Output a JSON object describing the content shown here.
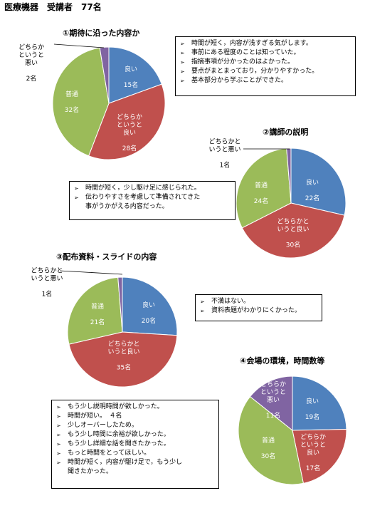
{
  "page_title": "医療機器　受講者　77名",
  "colors": {
    "good": "#4f81bd",
    "somewhat_good": "#c0504d",
    "normal": "#9bbb59",
    "somewhat_bad": "#8064a2"
  },
  "chart_data": [
    {
      "type": "pie",
      "title": "①期待に沿った内容か",
      "slices": [
        {
          "label": "良い",
          "count": "15名",
          "value": 15
        },
        {
          "label": "どちらか\nというと\n良い",
          "count": "28名",
          "value": 28
        },
        {
          "label": "普通",
          "count": "32名",
          "value": 32
        },
        {
          "label": "どちらか\nというと\n悪い",
          "count": "2名",
          "value": 2
        }
      ]
    },
    {
      "type": "pie",
      "title": "②講師の説明",
      "slices": [
        {
          "label": "良い",
          "count": "22名",
          "value": 22
        },
        {
          "label": "どちらかと\nいうと良い",
          "count": "30名",
          "value": 30
        },
        {
          "label": "普通",
          "count": "24名",
          "value": 24
        },
        {
          "label": "どちらかと\nいうと悪い",
          "count": "1名",
          "value": 1
        }
      ]
    },
    {
      "type": "pie",
      "title": "③配布資料・スライドの内容",
      "slices": [
        {
          "label": "良い",
          "count": "20名",
          "value": 20
        },
        {
          "label": "どちらかと\nいうと良い",
          "count": "35名",
          "value": 35
        },
        {
          "label": "普通",
          "count": "21名",
          "value": 21
        },
        {
          "label": "どちらかと\nいうと悪い",
          "count": "1名",
          "value": 1
        }
      ]
    },
    {
      "type": "pie",
      "title": "④会場の環境，時間数等",
      "slices": [
        {
          "label": "良い",
          "count": "19名",
          "value": 19
        },
        {
          "label": "どちらか\nというと\n良い",
          "count": "17名",
          "value": 17
        },
        {
          "label": "普通",
          "count": "30名",
          "value": 30
        },
        {
          "label": "どちらか\nというと\n悪い",
          "count": "11名",
          "value": 11
        }
      ]
    }
  ],
  "comments": [
    {
      "items": [
        "時間が短く，内容が浅すぎる気がします。",
        "事前にある程度のことは知っていた。",
        "指摘事項が分かったのはよかった。",
        "要点がまとまっており，分かりやすかった。",
        "基本部分から学ぶことができた。"
      ]
    },
    {
      "items": [
        "時間が短く，少し駆け足に感じられた。",
        "伝わりやすさを考慮して準備されてきた\n事がうかがえる内容だった。"
      ]
    },
    {
      "items": [
        "不満はない。",
        "資料表題がわかりにくかった。"
      ]
    },
    {
      "items": [
        "もう少し説明時間が欲しかった。",
        "時間が短い。　４名",
        "少しオーバーしたため。",
        "もう少し時間に余裕が欲しかった。",
        "もう少し詳細な話を聞きたかった。",
        "もっと時間をとってほしい。",
        "時間が短く，内容が駆け足で，もう少し\n聞きたかった。"
      ]
    }
  ],
  "bullet_symbol": "➢"
}
